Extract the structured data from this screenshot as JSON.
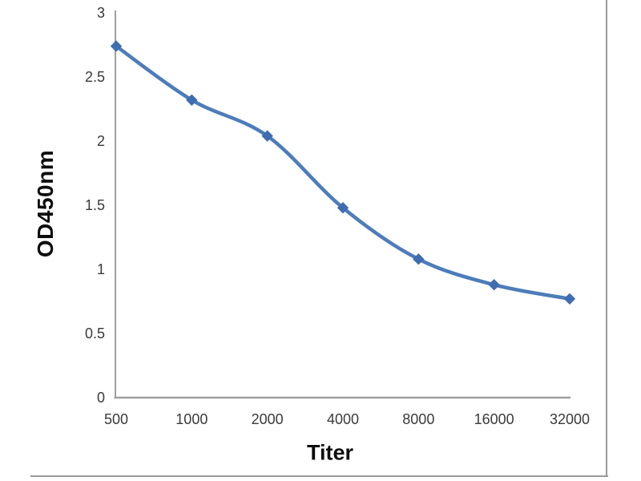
{
  "chart_data": {
    "type": "line",
    "title": "",
    "xlabel": "Titer",
    "ylabel": "OD450nm",
    "categories": [
      "500",
      "1000",
      "2000",
      "4000",
      "8000",
      "16000",
      "32000"
    ],
    "series": [
      {
        "name": "OD450nm",
        "values": [
          2.74,
          2.32,
          2.04,
          1.48,
          1.08,
          0.88,
          0.77
        ]
      }
    ],
    "ylim": [
      0,
      3
    ],
    "ytick_labels": [
      "0",
      "0.5",
      "1",
      "1.5",
      "2",
      "2.5",
      "3"
    ],
    "ytick_values": [
      0,
      0.5,
      1,
      1.5,
      2,
      2.5,
      3
    ],
    "x_axis_scale": "log2-categorical",
    "grid": false,
    "legend": "none",
    "line_smooth": true,
    "marker": "diamond",
    "colors": {
      "line": "#4d7cba",
      "marker": "#3f6db0",
      "axis": "#9f9f9f",
      "tick_text": "#3a3a3a",
      "title_text": "#0d0d0d",
      "frame_border": "#9a9a9a",
      "background": "#ffffff"
    }
  }
}
